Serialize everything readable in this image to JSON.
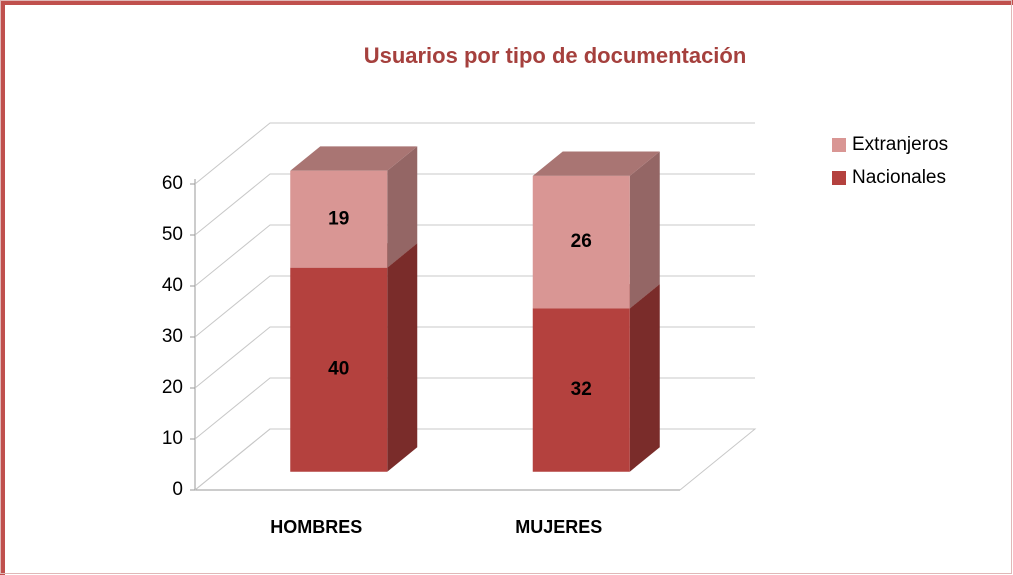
{
  "chart_data": {
    "type": "bar3d_stacked",
    "title": "Usuarios por tipo de documentación",
    "categories": [
      "HOMBRES",
      "MUJERES"
    ],
    "series": [
      {
        "name": "Nacionales",
        "color": "#b4413e",
        "values": [
          40,
          32
        ]
      },
      {
        "name": "Extranjeros",
        "color": "#d99694",
        "values": [
          19,
          26
        ]
      }
    ],
    "ylim": [
      0,
      60
    ],
    "yticks": [
      0,
      10,
      20,
      30,
      40,
      50,
      60
    ],
    "grid": true,
    "legend": "right"
  }
}
